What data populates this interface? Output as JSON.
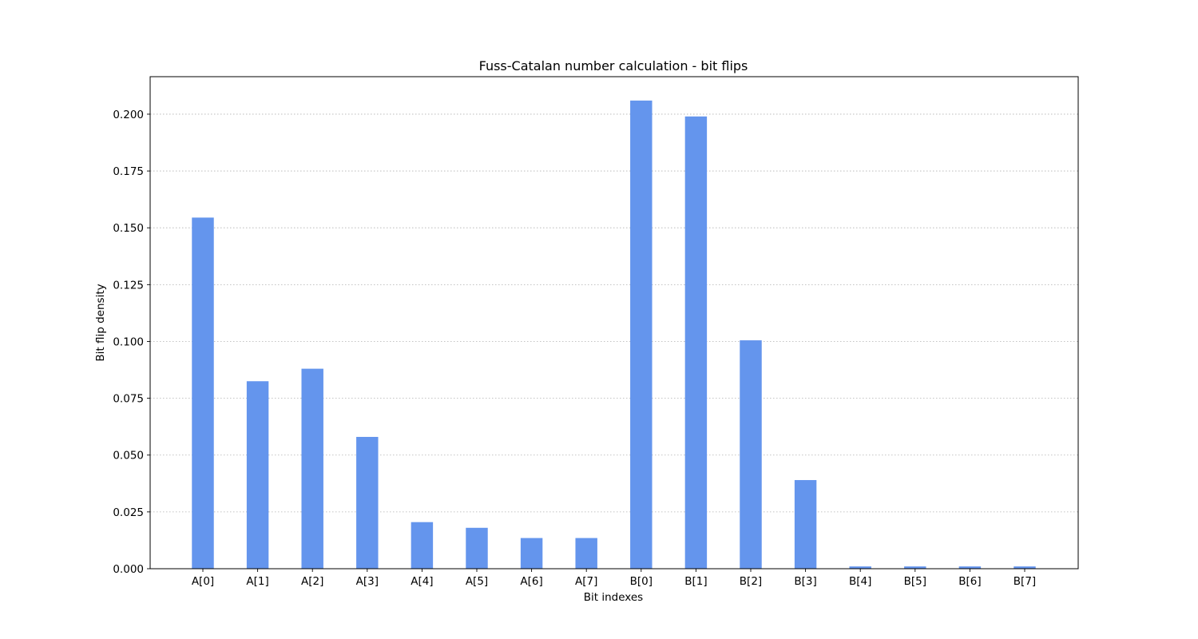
{
  "chart_data": {
    "type": "bar",
    "title": "Fuss-Catalan number calculation - bit flips",
    "xlabel": "Bit indexes",
    "ylabel": "Bit flip density",
    "categories": [
      "A[0]",
      "A[1]",
      "A[2]",
      "A[3]",
      "A[4]",
      "A[5]",
      "A[6]",
      "A[7]",
      "B[0]",
      "B[1]",
      "B[2]",
      "B[3]",
      "B[4]",
      "B[5]",
      "B[6]",
      "B[7]"
    ],
    "values": [
      0.1545,
      0.0825,
      0.088,
      0.058,
      0.0205,
      0.018,
      0.0135,
      0.0135,
      0.206,
      0.199,
      0.1005,
      0.039,
      0.001,
      0.001,
      0.001,
      0.001
    ],
    "ylim": [
      0,
      0.2165
    ],
    "yticks": [
      "0.000",
      "0.025",
      "0.050",
      "0.075",
      "0.100",
      "0.125",
      "0.150",
      "0.175",
      "0.200"
    ],
    "grid": "horizontal dotted",
    "bar_color": "#6495ed"
  }
}
